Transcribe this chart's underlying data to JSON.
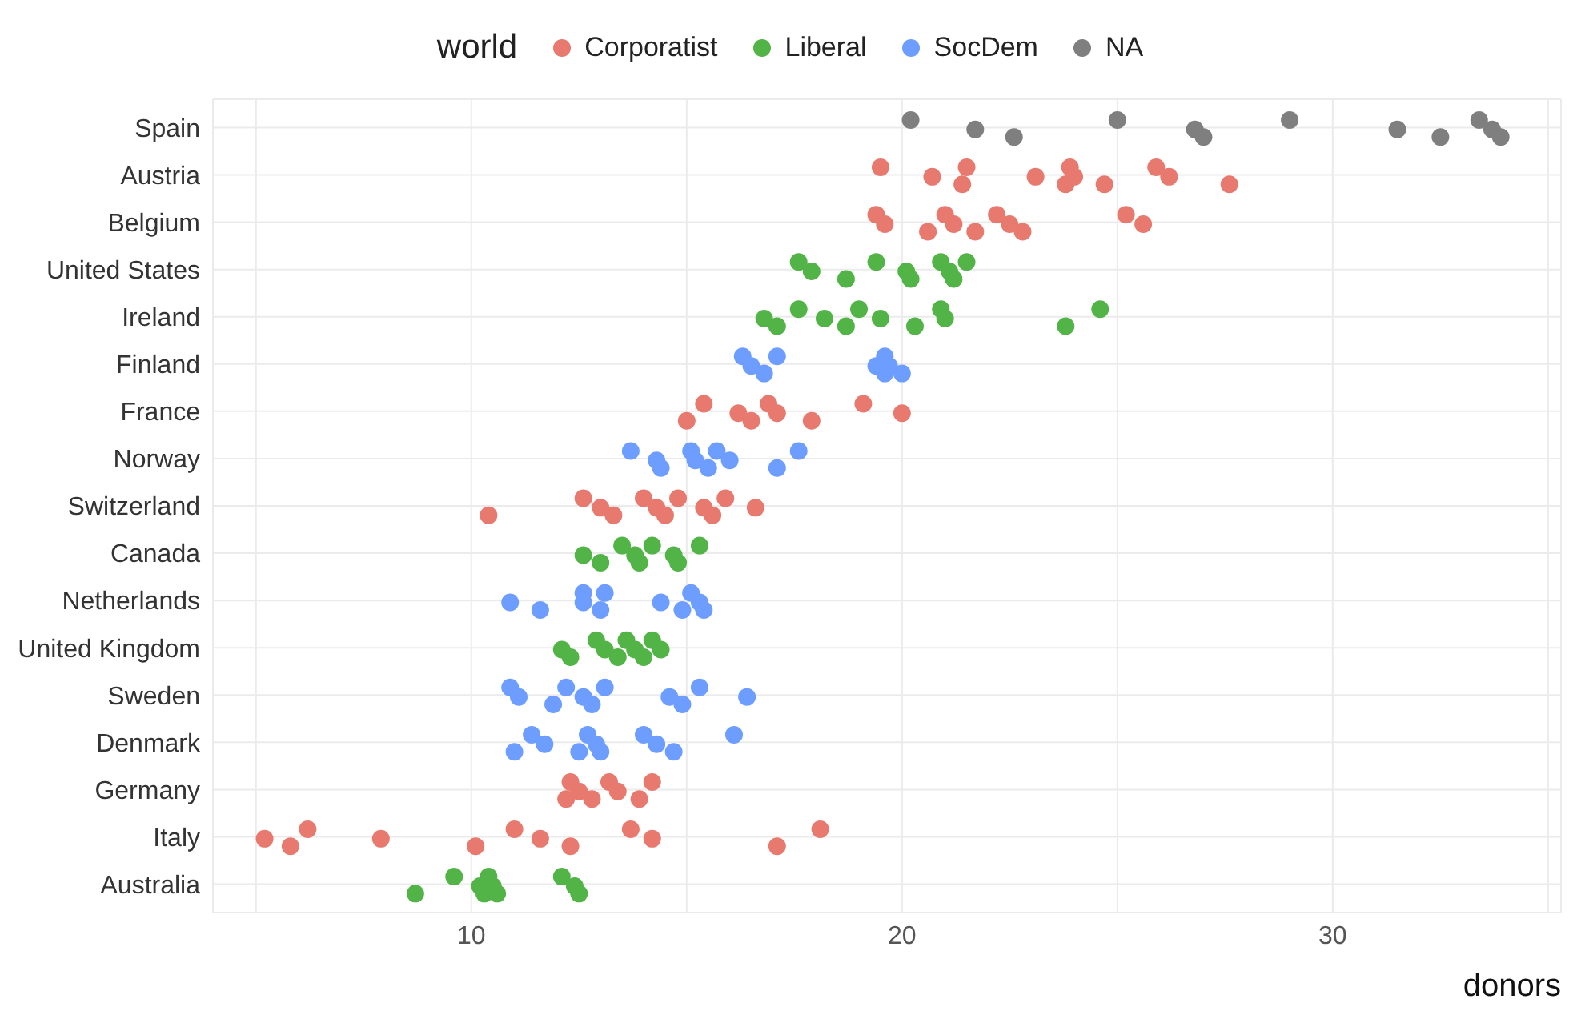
{
  "chart_data": {
    "type": "scatter",
    "orientation": "horizontal",
    "xlabel": "donors",
    "legend_title": "world",
    "legend": "top",
    "grid": true,
    "marker": "circle",
    "categories": [
      "Spain",
      "Austria",
      "Belgium",
      "United States",
      "Ireland",
      "Finland",
      "France",
      "Norway",
      "Switzerland",
      "Canada",
      "Netherlands",
      "United Kingdom",
      "Sweden",
      "Denmark",
      "Germany",
      "Italy",
      "Australia"
    ],
    "xlim": [
      4,
      35.3
    ],
    "xticks": [
      {
        "value": 5,
        "label": null
      },
      10,
      {
        "value": 15,
        "label": null
      },
      20,
      {
        "value": 25,
        "label": null
      },
      30,
      {
        "value": 35,
        "label": null
      }
    ],
    "series": [
      {
        "name": "Corporatist",
        "color": "#e8796e",
        "x": [
          "Austria",
          "Austria",
          "Austria",
          "Austria",
          "Austria",
          "Austria",
          "Austria",
          "Austria",
          "Austria",
          "Austria",
          "Austria",
          "Austria",
          "Belgium",
          "Belgium",
          "Belgium",
          "Belgium",
          "Belgium",
          "Belgium",
          "Belgium",
          "Belgium",
          "Belgium",
          "Belgium",
          "Belgium",
          "France",
          "France",
          "France",
          "France",
          "France",
          "France",
          "France",
          "France",
          "France",
          "Switzerland",
          "Switzerland",
          "Switzerland",
          "Switzerland",
          "Switzerland",
          "Switzerland",
          "Switzerland",
          "Switzerland",
          "Switzerland",
          "Switzerland",
          "Switzerland",
          "Switzerland",
          "Germany",
          "Germany",
          "Germany",
          "Germany",
          "Germany",
          "Germany",
          "Germany",
          "Germany",
          "Italy",
          "Italy",
          "Italy",
          "Italy",
          "Italy",
          "Italy",
          "Italy",
          "Italy",
          "Italy",
          "Italy",
          "Italy",
          "Italy"
        ],
        "values": [
          19.5,
          20.7,
          21.4,
          21.5,
          23.1,
          23.8,
          23.9,
          24.0,
          24.7,
          25.9,
          26.2,
          27.6,
          19.4,
          19.6,
          20.6,
          21.0,
          21.2,
          21.7,
          22.2,
          22.5,
          22.8,
          25.2,
          25.6,
          15.0,
          15.4,
          16.2,
          16.5,
          16.9,
          17.1,
          17.9,
          19.1,
          20.0,
          10.4,
          12.6,
          13.0,
          13.3,
          14.0,
          14.3,
          14.5,
          14.8,
          15.4,
          15.6,
          15.9,
          16.6,
          12.2,
          12.3,
          12.5,
          12.8,
          13.2,
          13.4,
          13.9,
          14.2,
          5.2,
          5.8,
          6.2,
          7.9,
          10.1,
          11.0,
          11.6,
          12.3,
          13.7,
          14.2,
          17.1,
          18.1
        ]
      },
      {
        "name": "Liberal",
        "color": "#52b447",
        "x": [
          "United States",
          "United States",
          "United States",
          "United States",
          "United States",
          "United States",
          "United States",
          "United States",
          "United States",
          "United States",
          "Ireland",
          "Ireland",
          "Ireland",
          "Ireland",
          "Ireland",
          "Ireland",
          "Ireland",
          "Ireland",
          "Ireland",
          "Ireland",
          "Ireland",
          "Ireland",
          "Canada",
          "Canada",
          "Canada",
          "Canada",
          "Canada",
          "Canada",
          "Canada",
          "Canada",
          "Canada",
          "United Kingdom",
          "United Kingdom",
          "United Kingdom",
          "United Kingdom",
          "United Kingdom",
          "United Kingdom",
          "United Kingdom",
          "United Kingdom",
          "United Kingdom",
          "United Kingdom",
          "Australia",
          "Australia",
          "Australia",
          "Australia",
          "Australia",
          "Australia",
          "Australia",
          "Australia",
          "Australia",
          "Australia"
        ],
        "values": [
          17.6,
          17.9,
          18.7,
          19.4,
          20.1,
          20.2,
          20.9,
          21.1,
          21.2,
          21.5,
          16.8,
          17.1,
          17.6,
          18.2,
          18.7,
          19.0,
          19.5,
          20.3,
          20.9,
          21.0,
          23.8,
          24.6,
          12.6,
          13.0,
          13.5,
          13.8,
          13.9,
          14.2,
          14.7,
          14.8,
          15.3,
          12.1,
          12.3,
          12.9,
          13.1,
          13.4,
          13.6,
          13.8,
          14.0,
          14.2,
          14.4,
          8.7,
          9.6,
          10.2,
          10.3,
          10.4,
          10.5,
          10.6,
          12.1,
          12.4,
          12.5
        ]
      },
      {
        "name": "SocDem",
        "color": "#6d9eff",
        "x": [
          "Finland",
          "Finland",
          "Finland",
          "Finland",
          "Finland",
          "Finland",
          "Finland",
          "Finland",
          "Finland",
          "Norway",
          "Norway",
          "Norway",
          "Norway",
          "Norway",
          "Norway",
          "Norway",
          "Norway",
          "Norway",
          "Norway",
          "Netherlands",
          "Netherlands",
          "Netherlands",
          "Netherlands",
          "Netherlands",
          "Netherlands",
          "Netherlands",
          "Netherlands",
          "Netherlands",
          "Netherlands",
          "Netherlands",
          "Sweden",
          "Sweden",
          "Sweden",
          "Sweden",
          "Sweden",
          "Sweden",
          "Sweden",
          "Sweden",
          "Sweden",
          "Sweden",
          "Sweden",
          "Denmark",
          "Denmark",
          "Denmark",
          "Denmark",
          "Denmark",
          "Denmark",
          "Denmark",
          "Denmark",
          "Denmark",
          "Denmark",
          "Denmark"
        ],
        "values": [
          16.3,
          16.5,
          16.8,
          17.1,
          19.4,
          19.6,
          19.6,
          19.7,
          20.0,
          13.7,
          14.3,
          14.4,
          15.1,
          15.2,
          15.5,
          15.7,
          16.0,
          17.1,
          17.6,
          10.9,
          11.6,
          12.6,
          12.6,
          13.0,
          13.1,
          14.4,
          14.9,
          15.1,
          15.3,
          15.4,
          10.9,
          11.1,
          11.9,
          12.2,
          12.6,
          12.8,
          13.1,
          14.6,
          14.9,
          15.3,
          16.4,
          11.0,
          11.4,
          11.7,
          12.5,
          12.7,
          12.9,
          13.0,
          14.0,
          14.3,
          14.7,
          16.1
        ]
      },
      {
        "name": "NA",
        "color": "#7f7f7f",
        "x": [
          "Spain",
          "Spain",
          "Spain",
          "Spain",
          "Spain",
          "Spain",
          "Spain",
          "Spain",
          "Spain",
          "Spain",
          "Spain",
          "Spain"
        ],
        "values": [
          20.2,
          21.7,
          22.6,
          25.0,
          26.8,
          27.0,
          29.0,
          31.5,
          32.5,
          33.4,
          33.7,
          33.9
        ]
      }
    ]
  }
}
